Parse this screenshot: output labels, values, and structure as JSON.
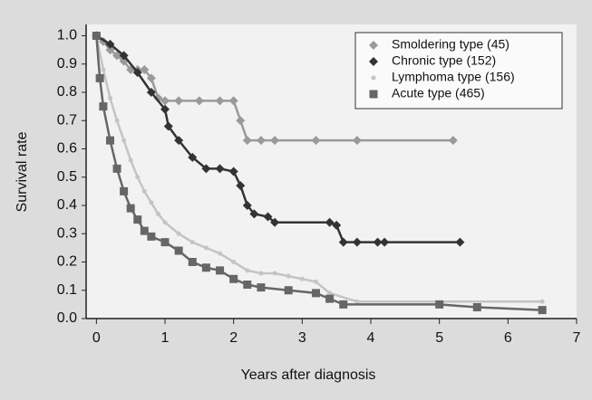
{
  "chart_data": {
    "type": "line",
    "xlabel": "Years after diagnosis",
    "ylabel": "Survival rate",
    "xlim": [
      -0.15,
      7
    ],
    "ylim": [
      0,
      1.04
    ],
    "xticks": [
      0,
      1,
      2,
      3,
      4,
      5,
      6,
      7
    ],
    "yticks": [
      {
        "value": 1.0,
        "label": "1.0"
      },
      {
        "value": 0.9,
        "label": "0.9"
      },
      {
        "value": 0.8,
        "label": "0.8"
      },
      {
        "value": 0.7,
        "label": "0.7"
      },
      {
        "value": 0.6,
        "label": "0.6"
      },
      {
        "value": 0.5,
        "label": "0.5"
      },
      {
        "value": 0.4,
        "label": "0.4"
      },
      {
        "value": 0.3,
        "label": "0.3"
      },
      {
        "value": 0.2,
        "label": "0.2"
      },
      {
        "value": 0.1,
        "label": "0.1"
      },
      {
        "value": 0.0,
        "label": "0.0"
      }
    ],
    "legend": "upper right",
    "series": [
      {
        "name": "Smoldering type (45)",
        "color": "#9a9a9a",
        "marker": "diamond",
        "x": [
          0,
          0.1,
          0.2,
          0.3,
          0.4,
          0.5,
          0.6,
          0.7,
          0.8,
          0.9,
          1.0,
          1.2,
          1.5,
          1.8,
          2.0,
          2.1,
          2.2,
          2.4,
          2.6,
          3.2,
          3.8,
          5.2
        ],
        "values": [
          1.0,
          0.98,
          0.95,
          0.93,
          0.91,
          0.88,
          0.88,
          0.88,
          0.85,
          0.78,
          0.77,
          0.77,
          0.77,
          0.77,
          0.77,
          0.7,
          0.63,
          0.63,
          0.63,
          0.63,
          0.63,
          0.63
        ]
      },
      {
        "name": "Chronic type (152)",
        "color": "#333333",
        "marker": "diamond",
        "x": [
          0,
          0.2,
          0.4,
          0.6,
          0.8,
          1.0,
          1.05,
          1.2,
          1.4,
          1.6,
          1.8,
          2.0,
          2.1,
          2.2,
          2.3,
          2.5,
          2.6,
          3.4,
          3.5,
          3.6,
          3.8,
          4.1,
          4.2,
          5.3
        ],
        "values": [
          1.0,
          0.97,
          0.93,
          0.87,
          0.8,
          0.74,
          0.68,
          0.63,
          0.57,
          0.53,
          0.53,
          0.52,
          0.47,
          0.4,
          0.37,
          0.36,
          0.34,
          0.34,
          0.33,
          0.27,
          0.27,
          0.27,
          0.27,
          0.27
        ]
      },
      {
        "name": "Lymphoma type (156)",
        "color": "#c4c4c4",
        "marker": "dot",
        "x": [
          0,
          0.1,
          0.2,
          0.3,
          0.4,
          0.5,
          0.6,
          0.7,
          0.8,
          0.9,
          1.0,
          1.2,
          1.4,
          1.6,
          1.8,
          2.0,
          2.2,
          2.4,
          2.6,
          2.8,
          3.0,
          3.2,
          3.4,
          3.8,
          6.5
        ],
        "values": [
          1.0,
          0.88,
          0.78,
          0.7,
          0.63,
          0.56,
          0.5,
          0.45,
          0.41,
          0.37,
          0.34,
          0.3,
          0.27,
          0.25,
          0.23,
          0.2,
          0.17,
          0.16,
          0.16,
          0.15,
          0.14,
          0.13,
          0.09,
          0.06,
          0.06
        ]
      },
      {
        "name": "Acute type (465)",
        "color": "#666666",
        "marker": "square",
        "x": [
          0,
          0.05,
          0.1,
          0.2,
          0.3,
          0.4,
          0.5,
          0.6,
          0.7,
          0.8,
          1.0,
          1.2,
          1.4,
          1.6,
          1.8,
          2.0,
          2.2,
          2.4,
          2.8,
          3.2,
          3.4,
          3.6,
          5.0,
          5.55,
          6.5
        ],
        "values": [
          1.0,
          0.85,
          0.75,
          0.63,
          0.53,
          0.45,
          0.39,
          0.35,
          0.31,
          0.29,
          0.27,
          0.24,
          0.2,
          0.18,
          0.17,
          0.14,
          0.12,
          0.11,
          0.1,
          0.09,
          0.07,
          0.05,
          0.05,
          0.04,
          0.03
        ]
      }
    ]
  }
}
